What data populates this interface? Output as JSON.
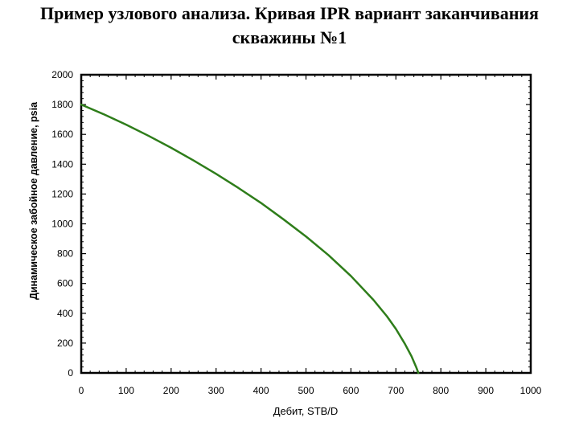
{
  "chart_data": {
    "type": "line",
    "title_line1": "Пример узлового анализа. Кривая IPR вариант заканчивания",
    "title_line2": "скважины №1",
    "xlabel": "Дебит, STB/D",
    "ylabel": "Динамическое забойное давление, psia",
    "xlim": [
      0,
      1000
    ],
    "ylim": [
      0,
      2000
    ],
    "xticks": [
      0,
      100,
      200,
      300,
      400,
      500,
      600,
      700,
      800,
      900,
      1000
    ],
    "yticks": [
      0,
      200,
      400,
      600,
      800,
      1000,
      1200,
      1400,
      1600,
      1800,
      2000
    ],
    "grid": false,
    "series": [
      {
        "color": "#2e7d1a",
        "x": [
          0,
          50,
          100,
          150,
          200,
          250,
          300,
          350,
          400,
          450,
          500,
          550,
          600,
          650,
          680,
          700,
          720,
          735,
          745,
          750
        ],
        "y": [
          1800,
          1735,
          1665,
          1590,
          1510,
          1425,
          1335,
          1240,
          1140,
          1030,
          915,
          790,
          650,
          490,
          380,
          295,
          195,
          110,
          40,
          0
        ]
      }
    ]
  }
}
